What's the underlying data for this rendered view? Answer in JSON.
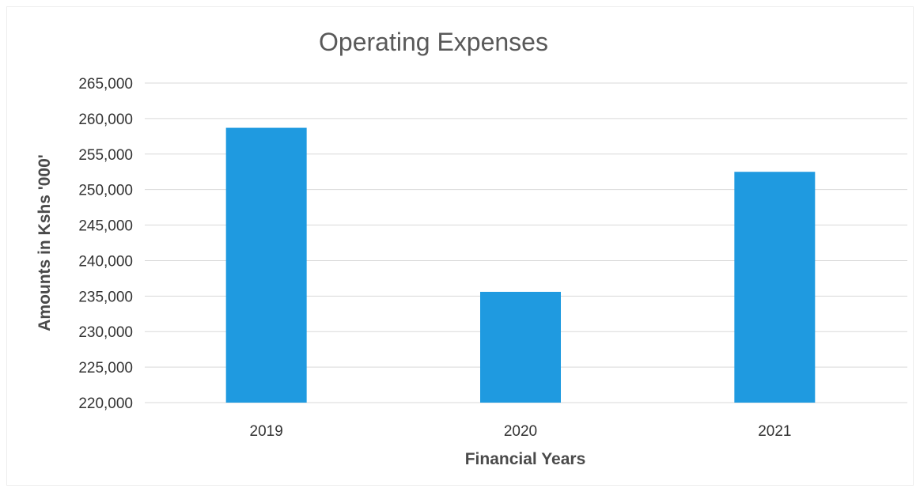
{
  "chart_data": {
    "type": "bar",
    "title": "Operating Expenses",
    "xlabel": "Financial Years",
    "ylabel": "Amounts in Kshs '000'",
    "categories": [
      "2019",
      "2020",
      "2021"
    ],
    "values": [
      258700,
      235600,
      252500
    ],
    "ylim": [
      220000,
      265000
    ],
    "yticks": [
      "220,000",
      "225,000",
      "230,000",
      "235,000",
      "240,000",
      "245,000",
      "250,000",
      "255,000",
      "260,000",
      "265,000"
    ],
    "ytick_values": [
      220000,
      225000,
      230000,
      235000,
      240000,
      245000,
      250000,
      255000,
      260000,
      265000
    ],
    "grid": true,
    "legend": "none",
    "bar_color": "#1f9ae0",
    "grid_color": "#d9d9d9"
  }
}
